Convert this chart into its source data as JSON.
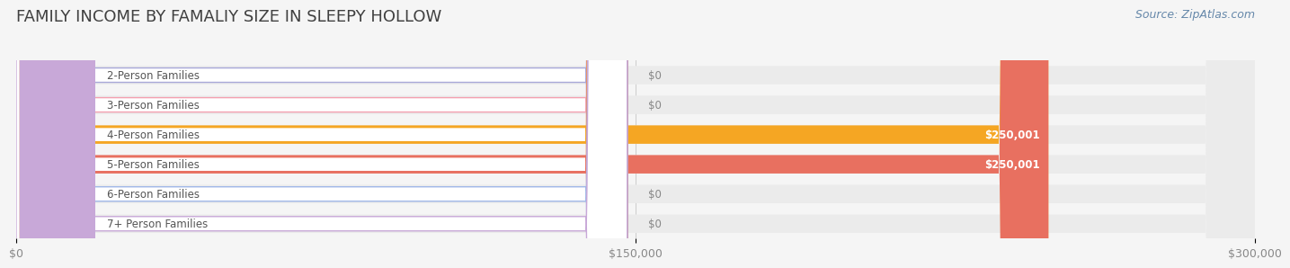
{
  "title": "FAMILY INCOME BY FAMALIY SIZE IN SLEEPY HOLLOW",
  "source": "Source: ZipAtlas.com",
  "categories": [
    "2-Person Families",
    "3-Person Families",
    "4-Person Families",
    "5-Person Families",
    "6-Person Families",
    "7+ Person Families"
  ],
  "values": [
    0,
    0,
    250001,
    250001,
    0,
    0
  ],
  "bar_colors": [
    "#a8a8d8",
    "#f4a0b0",
    "#f5a623",
    "#e87060",
    "#a0b8e8",
    "#c8a8d8"
  ],
  "xlim": [
    0,
    300000
  ],
  "xtick_labels": [
    "$0",
    "$150,000",
    "$300,000"
  ],
  "background_color": "#f5f5f5",
  "bar_bg_color": "#ebebeb",
  "title_fontsize": 13,
  "source_fontsize": 9,
  "tick_fontsize": 9,
  "label_fontsize": 8.5,
  "value_fontsize": 8.5,
  "bar_height": 0.62,
  "figsize": [
    14.06,
    3.05
  ],
  "dpi": 100
}
